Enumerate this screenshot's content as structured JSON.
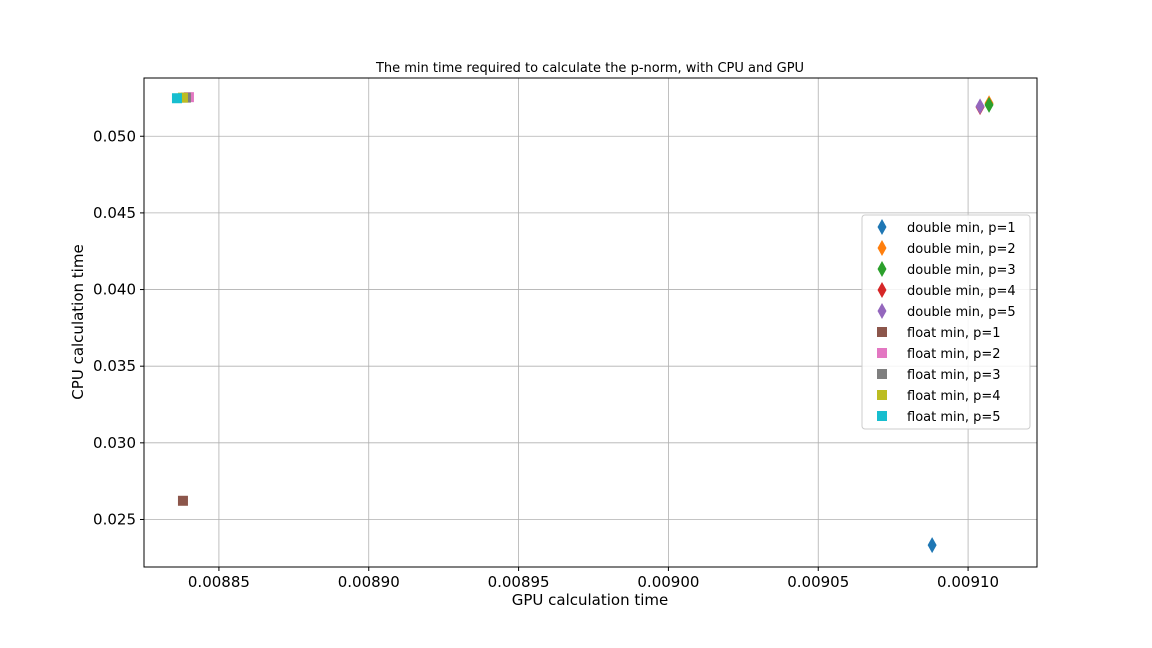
{
  "chart_data": {
    "type": "scatter",
    "title": "The min time required to calculate the p-norm, with CPU and GPU",
    "xlabel": "GPU calculation time",
    "ylabel": "CPU calculation time",
    "xlim": [
      0.008825,
      0.009123
    ],
    "ylim": [
      0.0219,
      0.0538
    ],
    "xticks": [
      0.00885,
      0.0089,
      0.00895,
      0.009,
      0.00905,
      0.0091
    ],
    "xtick_labels": [
      "0.00885",
      "0.00890",
      "0.00895",
      "0.00900",
      "0.00905",
      "0.00910"
    ],
    "yticks": [
      0.025,
      0.03,
      0.035,
      0.04,
      0.045,
      0.05
    ],
    "ytick_labels": [
      "0.025",
      "0.030",
      "0.035",
      "0.040",
      "0.045",
      "0.050"
    ],
    "grid": true,
    "legend_position": "center-right",
    "series": [
      {
        "name": "double min, p=1",
        "marker": "diamond",
        "color": "#1f77b4",
        "points": [
          [
            0.009088,
            0.02333
          ]
        ]
      },
      {
        "name": "double min, p=2",
        "marker": "diamond",
        "color": "#ff7f0e",
        "points": [
          [
            0.009107,
            0.05215
          ]
        ]
      },
      {
        "name": "double min, p=3",
        "marker": "diamond",
        "color": "#2ca02c",
        "points": [
          [
            0.009107,
            0.05205
          ]
        ]
      },
      {
        "name": "double min, p=4",
        "marker": "diamond",
        "color": "#d62728",
        "points": [
          [
            0.009104,
            0.0519
          ]
        ]
      },
      {
        "name": "double min, p=5",
        "marker": "diamond",
        "color": "#9467bd",
        "points": [
          [
            0.009104,
            0.05195
          ]
        ]
      },
      {
        "name": "float min, p=1",
        "marker": "square",
        "color": "#8c564b",
        "points": [
          [
            0.008838,
            0.02622
          ]
        ]
      },
      {
        "name": "float min, p=2",
        "marker": "square",
        "color": "#e377c2",
        "points": [
          [
            0.00884,
            0.05255
          ]
        ]
      },
      {
        "name": "float min, p=3",
        "marker": "square",
        "color": "#7f7f7f",
        "points": [
          [
            0.008839,
            0.05252
          ]
        ]
      },
      {
        "name": "float min, p=4",
        "marker": "square",
        "color": "#bcbd22",
        "points": [
          [
            0.008838,
            0.05252
          ]
        ]
      },
      {
        "name": "float min, p=5",
        "marker": "square",
        "color": "#17becf",
        "points": [
          [
            0.008836,
            0.05248
          ]
        ]
      }
    ]
  }
}
